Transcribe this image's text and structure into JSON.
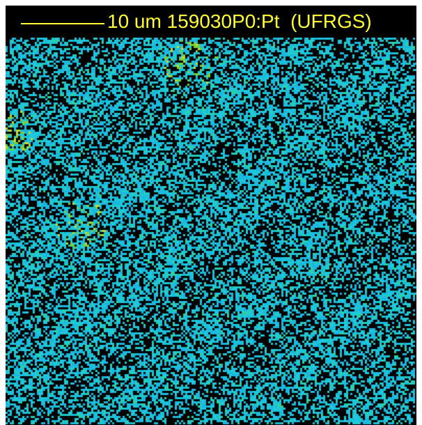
{
  "image": {
    "scale_label": "10 um 159030P0:Pt  (UFRGS)",
    "text_color": "#ffff33",
    "background_color": "#000000",
    "palette": [
      "#19b8e0",
      "#1ec8d8",
      "#2bd0a8",
      "#7ccf3a",
      "#c8d82a"
    ],
    "hotspots": [
      {
        "name": "upper-center-cluster"
      },
      {
        "name": "left-edge-cluster"
      },
      {
        "name": "left-middle-cluster"
      }
    ]
  }
}
